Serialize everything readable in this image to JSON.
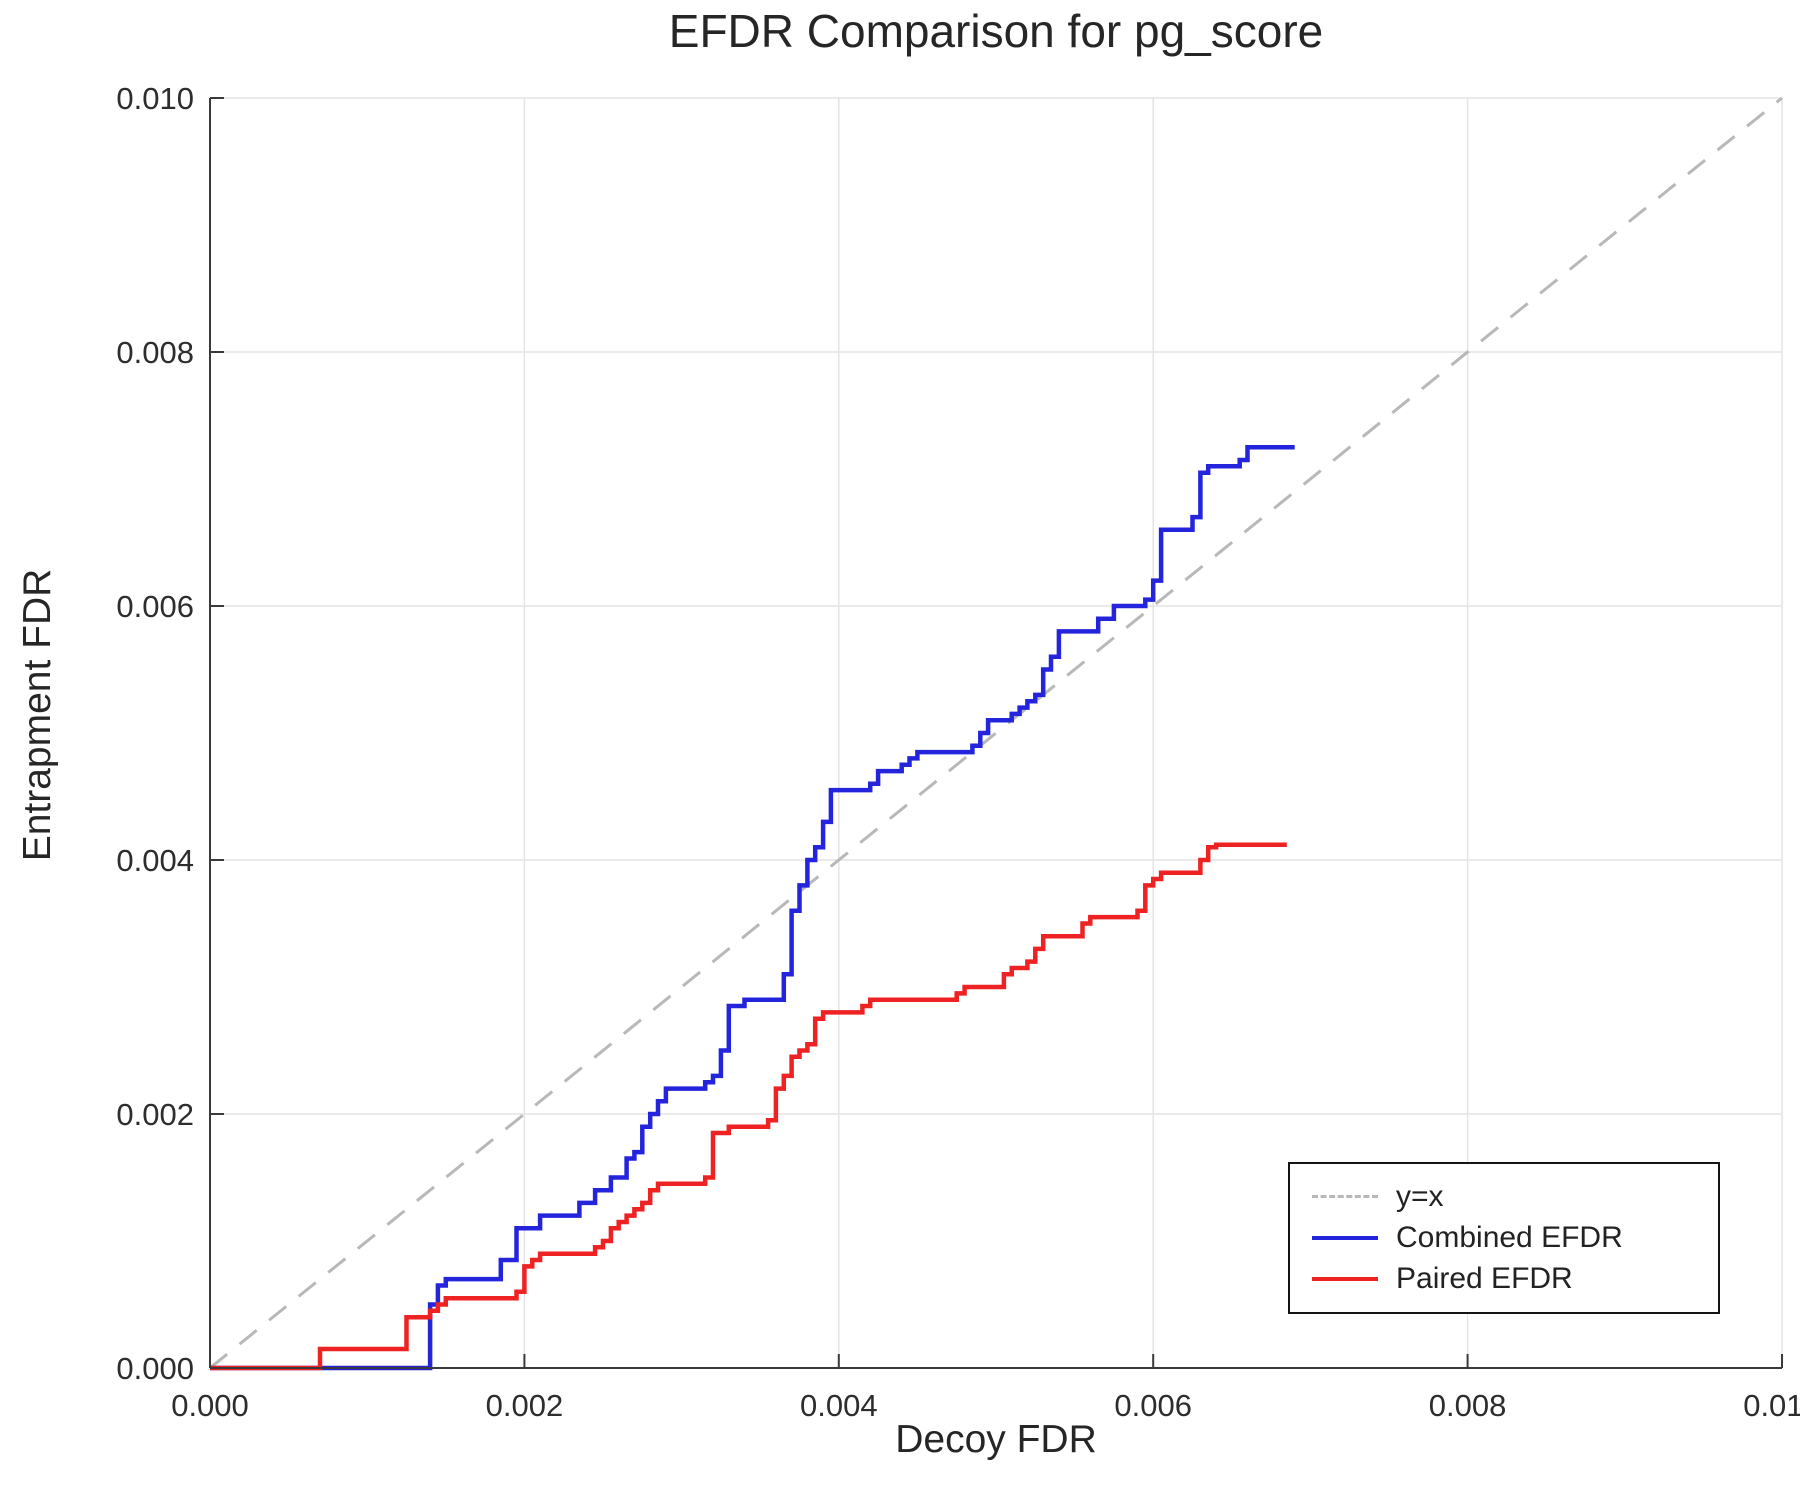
{
  "chart_data": {
    "type": "line",
    "title": "EFDR Comparison for pg_score",
    "xlabel": "Decoy FDR",
    "ylabel": "Entrapment FDR",
    "xlim": [
      0.0,
      0.01
    ],
    "ylim": [
      0.0,
      0.01
    ],
    "x_ticks": [
      0.0,
      0.002,
      0.004,
      0.006,
      0.008,
      0.01
    ],
    "x_tick_labels": [
      "0.000",
      "0.002",
      "0.004",
      "0.006",
      "0.008",
      "0.010"
    ],
    "y_ticks": [
      0.0,
      0.002,
      0.004,
      0.006,
      0.008,
      0.01
    ],
    "y_tick_labels": [
      "0.000",
      "0.002",
      "0.004",
      "0.006",
      "0.008",
      "0.010"
    ],
    "grid": true,
    "legend_position": "bottom-right",
    "reference_line": {
      "label": "y=x",
      "style": "dashed",
      "color": "#b8b8b8",
      "from": [
        0.0,
        0.0
      ],
      "to": [
        0.01,
        0.01
      ]
    },
    "series": [
      {
        "name": "Combined EFDR",
        "color": "#2424dd",
        "points": [
          [
            0.0,
            0.0
          ],
          [
            0.0014,
            0.0
          ],
          [
            0.0014,
            0.0005
          ],
          [
            0.00145,
            0.0005
          ],
          [
            0.00145,
            0.00065
          ],
          [
            0.0015,
            0.00065
          ],
          [
            0.0015,
            0.0007
          ],
          [
            0.00185,
            0.0007
          ],
          [
            0.00185,
            0.00085
          ],
          [
            0.00195,
            0.00085
          ],
          [
            0.00195,
            0.0011
          ],
          [
            0.0021,
            0.0011
          ],
          [
            0.0021,
            0.0012
          ],
          [
            0.00235,
            0.0012
          ],
          [
            0.00235,
            0.0013
          ],
          [
            0.00245,
            0.0013
          ],
          [
            0.00245,
            0.0014
          ],
          [
            0.00255,
            0.0014
          ],
          [
            0.00255,
            0.0015
          ],
          [
            0.00265,
            0.0015
          ],
          [
            0.00265,
            0.00165
          ],
          [
            0.0027,
            0.00165
          ],
          [
            0.0027,
            0.0017
          ],
          [
            0.00275,
            0.0017
          ],
          [
            0.00275,
            0.0019
          ],
          [
            0.0028,
            0.0019
          ],
          [
            0.0028,
            0.002
          ],
          [
            0.00285,
            0.002
          ],
          [
            0.00285,
            0.0021
          ],
          [
            0.0029,
            0.0021
          ],
          [
            0.0029,
            0.0022
          ],
          [
            0.00315,
            0.0022
          ],
          [
            0.00315,
            0.00225
          ],
          [
            0.0032,
            0.00225
          ],
          [
            0.0032,
            0.0023
          ],
          [
            0.00325,
            0.0023
          ],
          [
            0.00325,
            0.0025
          ],
          [
            0.0033,
            0.0025
          ],
          [
            0.0033,
            0.00285
          ],
          [
            0.0034,
            0.00285
          ],
          [
            0.0034,
            0.0029
          ],
          [
            0.00365,
            0.0029
          ],
          [
            0.00365,
            0.0031
          ],
          [
            0.0037,
            0.0031
          ],
          [
            0.0037,
            0.0036
          ],
          [
            0.00375,
            0.0036
          ],
          [
            0.00375,
            0.0038
          ],
          [
            0.0038,
            0.0038
          ],
          [
            0.0038,
            0.004
          ],
          [
            0.00385,
            0.004
          ],
          [
            0.00385,
            0.0041
          ],
          [
            0.0039,
            0.0041
          ],
          [
            0.0039,
            0.0043
          ],
          [
            0.00395,
            0.0043
          ],
          [
            0.00395,
            0.00455
          ],
          [
            0.0042,
            0.00455
          ],
          [
            0.0042,
            0.0046
          ],
          [
            0.00425,
            0.0046
          ],
          [
            0.00425,
            0.0047
          ],
          [
            0.0044,
            0.0047
          ],
          [
            0.0044,
            0.00475
          ],
          [
            0.00445,
            0.00475
          ],
          [
            0.00445,
            0.0048
          ],
          [
            0.0045,
            0.0048
          ],
          [
            0.0045,
            0.00485
          ],
          [
            0.00485,
            0.00485
          ],
          [
            0.00485,
            0.0049
          ],
          [
            0.0049,
            0.0049
          ],
          [
            0.0049,
            0.005
          ],
          [
            0.00495,
            0.005
          ],
          [
            0.00495,
            0.0051
          ],
          [
            0.0051,
            0.0051
          ],
          [
            0.0051,
            0.00515
          ],
          [
            0.00515,
            0.00515
          ],
          [
            0.00515,
            0.0052
          ],
          [
            0.0052,
            0.0052
          ],
          [
            0.0052,
            0.00525
          ],
          [
            0.00525,
            0.00525
          ],
          [
            0.00525,
            0.0053
          ],
          [
            0.0053,
            0.0053
          ],
          [
            0.0053,
            0.0055
          ],
          [
            0.00535,
            0.0055
          ],
          [
            0.00535,
            0.0056
          ],
          [
            0.0054,
            0.0056
          ],
          [
            0.0054,
            0.0058
          ],
          [
            0.00565,
            0.0058
          ],
          [
            0.00565,
            0.0059
          ],
          [
            0.00575,
            0.0059
          ],
          [
            0.00575,
            0.006
          ],
          [
            0.00595,
            0.006
          ],
          [
            0.00595,
            0.00605
          ],
          [
            0.006,
            0.00605
          ],
          [
            0.006,
            0.0062
          ],
          [
            0.00605,
            0.0062
          ],
          [
            0.00605,
            0.0066
          ],
          [
            0.00625,
            0.0066
          ],
          [
            0.00625,
            0.0067
          ],
          [
            0.0063,
            0.0067
          ],
          [
            0.0063,
            0.00705
          ],
          [
            0.00635,
            0.00705
          ],
          [
            0.00635,
            0.0071
          ],
          [
            0.00655,
            0.0071
          ],
          [
            0.00655,
            0.00715
          ],
          [
            0.0066,
            0.00715
          ],
          [
            0.0066,
            0.00725
          ],
          [
            0.0069,
            0.00725
          ]
        ]
      },
      {
        "name": "Paired EFDR",
        "color": "#ee2222",
        "points": [
          [
            0.0,
            0.0
          ],
          [
            0.0007,
            0.0
          ],
          [
            0.0007,
            0.00015
          ],
          [
            0.00125,
            0.00015
          ],
          [
            0.00125,
            0.0004
          ],
          [
            0.0014,
            0.0004
          ],
          [
            0.0014,
            0.00045
          ],
          [
            0.00145,
            0.00045
          ],
          [
            0.00145,
            0.0005
          ],
          [
            0.0015,
            0.0005
          ],
          [
            0.0015,
            0.00055
          ],
          [
            0.00195,
            0.00055
          ],
          [
            0.00195,
            0.0006
          ],
          [
            0.002,
            0.0006
          ],
          [
            0.002,
            0.0008
          ],
          [
            0.00205,
            0.0008
          ],
          [
            0.00205,
            0.00085
          ],
          [
            0.0021,
            0.00085
          ],
          [
            0.0021,
            0.0009
          ],
          [
            0.00245,
            0.0009
          ],
          [
            0.00245,
            0.00095
          ],
          [
            0.0025,
            0.00095
          ],
          [
            0.0025,
            0.001
          ],
          [
            0.00255,
            0.001
          ],
          [
            0.00255,
            0.0011
          ],
          [
            0.0026,
            0.0011
          ],
          [
            0.0026,
            0.00115
          ],
          [
            0.00265,
            0.00115
          ],
          [
            0.00265,
            0.0012
          ],
          [
            0.0027,
            0.0012
          ],
          [
            0.0027,
            0.00125
          ],
          [
            0.00275,
            0.00125
          ],
          [
            0.00275,
            0.0013
          ],
          [
            0.0028,
            0.0013
          ],
          [
            0.0028,
            0.0014
          ],
          [
            0.00285,
            0.0014
          ],
          [
            0.00285,
            0.00145
          ],
          [
            0.00315,
            0.00145
          ],
          [
            0.00315,
            0.0015
          ],
          [
            0.0032,
            0.0015
          ],
          [
            0.0032,
            0.00185
          ],
          [
            0.0033,
            0.00185
          ],
          [
            0.0033,
            0.0019
          ],
          [
            0.00355,
            0.0019
          ],
          [
            0.00355,
            0.00195
          ],
          [
            0.0036,
            0.00195
          ],
          [
            0.0036,
            0.0022
          ],
          [
            0.00365,
            0.0022
          ],
          [
            0.00365,
            0.0023
          ],
          [
            0.0037,
            0.0023
          ],
          [
            0.0037,
            0.00245
          ],
          [
            0.00375,
            0.00245
          ],
          [
            0.00375,
            0.0025
          ],
          [
            0.0038,
            0.0025
          ],
          [
            0.0038,
            0.00255
          ],
          [
            0.00385,
            0.00255
          ],
          [
            0.00385,
            0.00275
          ],
          [
            0.0039,
            0.00275
          ],
          [
            0.0039,
            0.0028
          ],
          [
            0.00415,
            0.0028
          ],
          [
            0.00415,
            0.00285
          ],
          [
            0.0042,
            0.00285
          ],
          [
            0.0042,
            0.0029
          ],
          [
            0.00475,
            0.0029
          ],
          [
            0.00475,
            0.00295
          ],
          [
            0.0048,
            0.00295
          ],
          [
            0.0048,
            0.003
          ],
          [
            0.00505,
            0.003
          ],
          [
            0.00505,
            0.0031
          ],
          [
            0.0051,
            0.0031
          ],
          [
            0.0051,
            0.00315
          ],
          [
            0.0052,
            0.00315
          ],
          [
            0.0052,
            0.0032
          ],
          [
            0.00525,
            0.0032
          ],
          [
            0.00525,
            0.0033
          ],
          [
            0.0053,
            0.0033
          ],
          [
            0.0053,
            0.0034
          ],
          [
            0.00555,
            0.0034
          ],
          [
            0.00555,
            0.0035
          ],
          [
            0.0056,
            0.0035
          ],
          [
            0.0056,
            0.00355
          ],
          [
            0.0059,
            0.00355
          ],
          [
            0.0059,
            0.0036
          ],
          [
            0.00595,
            0.0036
          ],
          [
            0.00595,
            0.0038
          ],
          [
            0.006,
            0.0038
          ],
          [
            0.006,
            0.00385
          ],
          [
            0.00605,
            0.00385
          ],
          [
            0.00605,
            0.0039
          ],
          [
            0.0063,
            0.0039
          ],
          [
            0.0063,
            0.004
          ],
          [
            0.00635,
            0.004
          ],
          [
            0.00635,
            0.0041
          ],
          [
            0.0064,
            0.0041
          ],
          [
            0.0064,
            0.00412
          ],
          [
            0.00685,
            0.00412
          ]
        ]
      }
    ]
  }
}
